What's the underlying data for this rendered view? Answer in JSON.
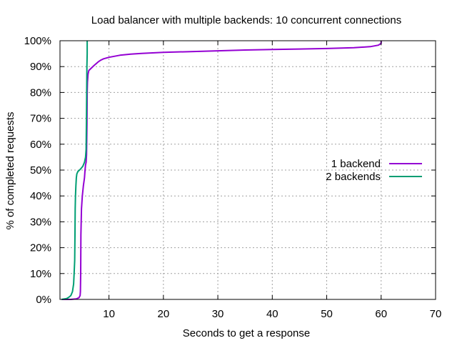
{
  "chart_data": {
    "type": "line",
    "title": "Load balancer with multiple backends: 10 concurrent connections",
    "xlabel": "Seconds to get a response",
    "ylabel": "% of completed requests",
    "xlim": [
      1,
      70
    ],
    "ylim": [
      0,
      100
    ],
    "x_ticks": [
      10,
      20,
      30,
      40,
      50,
      60,
      70
    ],
    "y_ticks": [
      0,
      10,
      20,
      30,
      40,
      50,
      60,
      70,
      80,
      90,
      100
    ],
    "x_tick_labels": [
      "10",
      "20",
      "30",
      "40",
      "50",
      "60",
      "70"
    ],
    "y_tick_labels": [
      "0%",
      "10%",
      "20%",
      "30%",
      "40%",
      "50%",
      "60%",
      "70%",
      "80%",
      "90%",
      "100%"
    ],
    "grid": true,
    "legend_position": "center-right",
    "series": [
      {
        "name": "1 backend",
        "color": "#9400d3",
        "points": [
          [
            1.3,
            0
          ],
          [
            3.0,
            0
          ],
          [
            4.0,
            0.2
          ],
          [
            4.5,
            0.7
          ],
          [
            4.7,
            1.5
          ],
          [
            4.75,
            3
          ],
          [
            4.8,
            10
          ],
          [
            4.85,
            25
          ],
          [
            4.95,
            35
          ],
          [
            5.1,
            40
          ],
          [
            5.3,
            44
          ],
          [
            5.5,
            47
          ],
          [
            5.6,
            50
          ],
          [
            5.7,
            52
          ],
          [
            5.8,
            53
          ],
          [
            5.88,
            56
          ],
          [
            5.92,
            62
          ],
          [
            5.96,
            68
          ],
          [
            6.0,
            80
          ],
          [
            6.05,
            84
          ],
          [
            6.15,
            87
          ],
          [
            6.3,
            88.5
          ],
          [
            6.8,
            89.5
          ],
          [
            7.3,
            90.5
          ],
          [
            8.0,
            91.8
          ],
          [
            8.5,
            92.5
          ],
          [
            9.0,
            93.0
          ],
          [
            10.0,
            93.6
          ],
          [
            12.0,
            94.4
          ],
          [
            14.0,
            94.8
          ],
          [
            16.0,
            95.1
          ],
          [
            18.0,
            95.3
          ],
          [
            20.0,
            95.5
          ],
          [
            25.0,
            95.8
          ],
          [
            30.0,
            96.1
          ],
          [
            35.0,
            96.4
          ],
          [
            40.0,
            96.6
          ],
          [
            45.0,
            96.8
          ],
          [
            50.0,
            97.0
          ],
          [
            55.0,
            97.3
          ],
          [
            58.0,
            97.7
          ],
          [
            59.5,
            98.3
          ],
          [
            60.0,
            99.0
          ],
          [
            60.0,
            100
          ]
        ]
      },
      {
        "name": "2 backends",
        "color": "#009e73",
        "points": [
          [
            1.3,
            0
          ],
          [
            2.2,
            0.3
          ],
          [
            2.6,
            0.8
          ],
          [
            3.0,
            1.5
          ],
          [
            3.3,
            3
          ],
          [
            3.5,
            6
          ],
          [
            3.6,
            10
          ],
          [
            3.7,
            15
          ],
          [
            3.75,
            25
          ],
          [
            3.8,
            35
          ],
          [
            3.85,
            40
          ],
          [
            3.92,
            44
          ],
          [
            4.0,
            47
          ],
          [
            4.1,
            48.5
          ],
          [
            4.3,
            49.5
          ],
          [
            4.6,
            50
          ],
          [
            4.9,
            50.7
          ],
          [
            5.2,
            51.5
          ],
          [
            5.5,
            53
          ],
          [
            5.7,
            55
          ],
          [
            5.8,
            58
          ],
          [
            5.85,
            68
          ],
          [
            5.9,
            80
          ],
          [
            5.95,
            90
          ],
          [
            6.0,
            95
          ],
          [
            6.0,
            100
          ]
        ]
      }
    ]
  }
}
